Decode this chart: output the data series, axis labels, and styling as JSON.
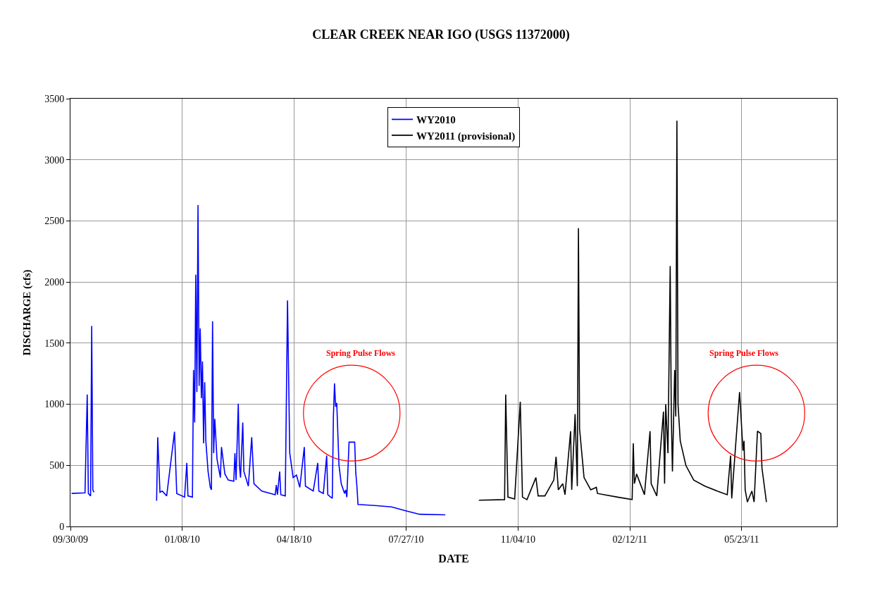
{
  "chart_data": {
    "type": "line",
    "title": "CLEAR CREEK NEAR IGO (USGS 11372000)",
    "xlabel": "DATE",
    "ylabel": "DISCHARGE (cfs)",
    "xlim": [
      "2009-09-30",
      "2011-08-16"
    ],
    "xticks": [
      {
        "value": "2009-09-30",
        "label": "09/30/09"
      },
      {
        "value": "2010-01-08",
        "label": "01/08/10"
      },
      {
        "value": "2010-04-18",
        "label": "04/18/10"
      },
      {
        "value": "2010-07-27",
        "label": "07/27/10"
      },
      {
        "value": "2010-11-04",
        "label": "11/04/10"
      },
      {
        "value": "2011-02-12",
        "label": "02/12/11"
      },
      {
        "value": "2011-05-23",
        "label": "05/23/11"
      }
    ],
    "ylim": [
      0,
      3500
    ],
    "yticks": [
      0,
      500,
      1000,
      1500,
      2000,
      2500,
      3000,
      3500
    ],
    "grid": true,
    "legend": "top",
    "line_style": "solid",
    "marker": "none",
    "series": [
      {
        "name": "WY2010",
        "color": "#0000ff",
        "x": [
          "2009-10-01",
          "2009-10-13",
          "2009-10-15",
          "2009-10-16",
          "2009-10-18",
          "2009-10-19",
          "2009-10-20",
          "2009-10-21",
          "2009-11-19",
          "2009-12-16",
          "2009-12-17",
          "2009-12-19",
          "2009-12-21",
          "2009-12-25",
          "2010-01-01",
          "2010-01-03",
          "2010-01-10",
          "2010-01-12",
          "2010-01-13",
          "2010-01-17",
          "2010-01-18",
          "2010-01-19",
          "2010-01-20",
          "2010-01-21",
          "2010-01-22",
          "2010-01-23",
          "2010-01-24",
          "2010-01-25",
          "2010-01-26",
          "2010-01-27",
          "2010-01-28",
          "2010-01-29",
          "2010-01-31",
          "2010-02-02",
          "2010-02-03",
          "2010-02-04",
          "2010-02-05",
          "2010-02-06",
          "2010-02-08",
          "2010-02-11",
          "2010-02-12",
          "2010-02-15",
          "2010-02-18",
          "2010-02-23",
          "2010-02-24",
          "2010-02-25",
          "2010-02-27",
          "2010-02-28",
          "2010-03-01",
          "2010-03-03",
          "2010-03-04",
          "2010-03-08",
          "2010-03-11",
          "2010-03-13",
          "2010-03-20",
          "2010-03-28",
          "2010-04-01",
          "2010-04-02",
          "2010-04-03",
          "2010-04-05",
          "2010-04-06",
          "2010-04-10",
          "2010-04-12",
          "2010-04-14",
          "2010-04-17",
          "2010-04-20",
          "2010-04-23",
          "2010-04-27",
          "2010-04-28",
          "2010-05-05",
          "2010-05-09",
          "2010-05-10",
          "2010-05-14",
          "2010-05-17",
          "2010-05-18",
          "2010-05-22",
          "2010-05-23",
          "2010-05-24",
          "2010-05-25",
          "2010-05-26",
          "2010-05-28",
          "2010-05-30",
          "2010-06-02",
          "2010-06-03",
          "2010-06-04",
          "2010-06-06",
          "2010-06-11",
          "2010-06-12",
          "2010-06-13",
          "2010-06-14",
          "2010-07-01",
          "2010-07-14",
          "2010-07-26",
          "2010-08-08",
          "2010-08-31"
        ],
        "values": [
          270,
          275,
          1080,
          270,
          250,
          1640,
          300,
          280,
          null,
          210,
          730,
          280,
          290,
          250,
          775,
          270,
          240,
          520,
          250,
          240,
          1280,
          850,
          2060,
          1100,
          2630,
          1150,
          1620,
          1050,
          1350,
          680,
          1180,
          700,
          450,
          320,
          300,
          1680,
          600,
          880,
          550,
          400,
          650,
          430,
          380,
          370,
          600,
          380,
          1005,
          500,
          400,
          850,
          450,
          330,
          730,
          350,
          290,
          270,
          260,
          340,
          260,
          450,
          260,
          250,
          1850,
          600,
          400,
          420,
          320,
          650,
          330,
          290,
          520,
          290,
          270,
          580,
          260,
          230,
          900,
          1170,
          980,
          1010,
          500,
          350,
          270,
          300,
          240,
          690,
          690,
          440,
          330,
          180,
          170,
          160,
          130,
          100,
          95
        ]
      },
      {
        "name": "WY2011 (provisional)",
        "color": "#000000",
        "x": [
          "2010-09-30",
          "2010-10-23",
          "2010-10-24",
          "2010-10-26",
          "2010-11-01",
          "2010-11-06",
          "2010-11-08",
          "2010-11-12",
          "2010-11-20",
          "2010-11-22",
          "2010-11-28",
          "2010-12-06",
          "2010-12-08",
          "2010-12-10",
          "2010-12-14",
          "2010-12-16",
          "2010-12-21",
          "2010-12-22",
          "2010-12-25",
          "2010-12-27",
          "2010-12-28",
          "2010-12-29",
          "2011-01-02",
          "2011-01-08",
          "2011-01-13",
          "2011-01-14",
          "2011-02-01",
          "2011-02-14",
          "2011-02-15",
          "2011-02-16",
          "2011-02-18",
          "2011-02-20",
          "2011-02-25",
          "2011-03-02",
          "2011-03-03",
          "2011-03-08",
          "2011-03-14",
          "2011-03-15",
          "2011-03-16",
          "2011-03-18",
          "2011-03-20",
          "2011-03-21",
          "2011-03-22",
          "2011-03-24",
          "2011-03-25",
          "2011-03-26",
          "2011-03-27",
          "2011-03-29",
          "2011-04-03",
          "2011-04-10",
          "2011-04-20",
          "2011-05-01",
          "2011-05-10",
          "2011-05-13",
          "2011-05-14",
          "2011-05-21",
          "2011-05-22",
          "2011-05-24",
          "2011-05-25",
          "2011-05-26",
          "2011-05-28",
          "2011-06-01",
          "2011-06-03",
          "2011-06-06",
          "2011-06-09",
          "2011-06-10",
          "2011-06-14"
        ],
        "values": [
          215,
          220,
          1080,
          240,
          225,
          1020,
          240,
          220,
          400,
          250,
          250,
          380,
          570,
          300,
          350,
          260,
          780,
          300,
          920,
          330,
          2440,
          800,
          400,
          300,
          320,
          270,
          240,
          220,
          680,
          350,
          430,
          380,
          260,
          780,
          350,
          250,
          940,
          350,
          1000,
          600,
          2130,
          900,
          450,
          1280,
          900,
          3320,
          1000,
          700,
          500,
          380,
          330,
          290,
          260,
          580,
          230,
          1100,
          950,
          620,
          700,
          300,
          200,
          290,
          200,
          780,
          760,
          480,
          200
        ]
      }
    ],
    "annotations": [
      "Spring Pulse Flows",
      "Spring Pulse Flows"
    ]
  }
}
